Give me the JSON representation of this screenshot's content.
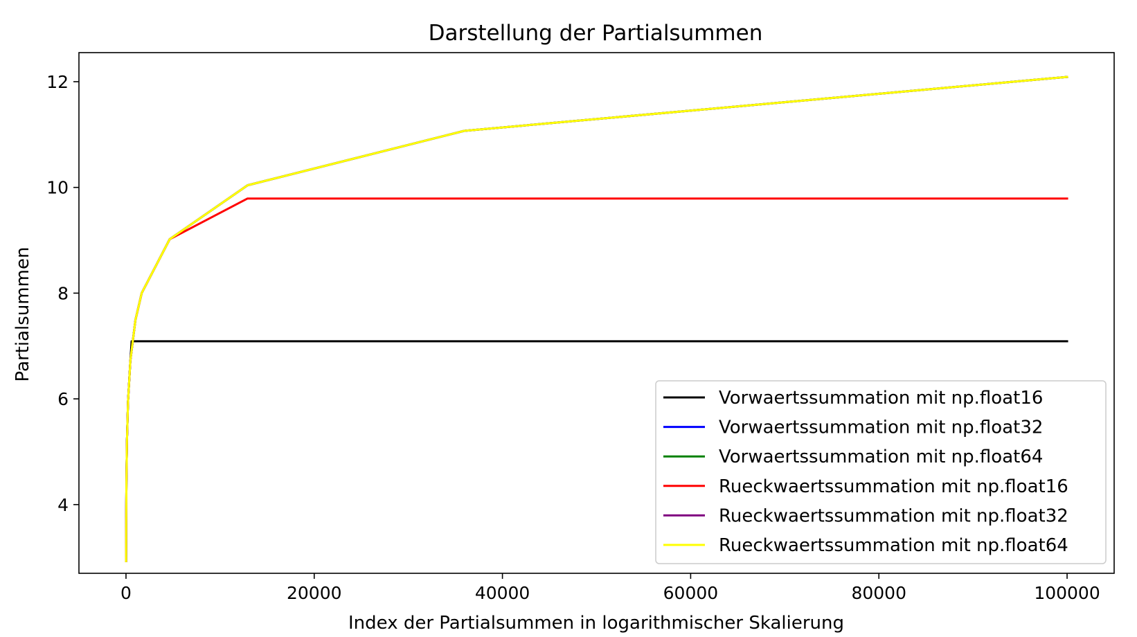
{
  "chart_data": {
    "type": "line",
    "title": "Darstellung der Partialsummen",
    "xlabel": "Index der Partialsummen in logarithmischer Skalierung",
    "ylabel": "Partialsummen",
    "xlim": [
      -5000,
      105000
    ],
    "ylim": [
      2.7,
      12.55
    ],
    "xticks": [
      0,
      20000,
      40000,
      60000,
      80000,
      100000
    ],
    "xtick_labels": [
      "0",
      "20000",
      "40000",
      "60000",
      "80000",
      "100000"
    ],
    "yticks": [
      4,
      6,
      8,
      10,
      12
    ],
    "ytick_labels": [
      "4",
      "6",
      "8",
      "10",
      "12"
    ],
    "grid": false,
    "legend_position": "lower-right",
    "series": [
      {
        "name": "Vorwaertssummation mit np.float16",
        "color": "#000000",
        "x": [
          10,
          22,
          46,
          100,
          215,
          464,
          600,
          1000,
          1668,
          4642,
          12915,
          35938,
          100000
        ],
        "y": [
          2.93,
          3.69,
          4.42,
          5.19,
          5.95,
          6.72,
          7.09,
          7.09,
          7.09,
          7.09,
          7.09,
          7.09,
          7.09
        ]
      },
      {
        "name": "Vorwaertssummation mit np.float32",
        "color": "#0000ff",
        "x": [
          10,
          22,
          46,
          100,
          215,
          464,
          1000,
          1668,
          4642,
          12915,
          35938,
          100000
        ],
        "y": [
          2.93,
          3.69,
          4.42,
          5.19,
          5.95,
          6.72,
          7.49,
          8.0,
          9.02,
          10.04,
          11.07,
          12.09
        ]
      },
      {
        "name": "Vorwaertssummation mit np.float64",
        "color": "#008000",
        "x": [
          10,
          22,
          46,
          100,
          215,
          464,
          1000,
          1668,
          4642,
          12915,
          35938,
          100000
        ],
        "y": [
          2.93,
          3.69,
          4.42,
          5.19,
          5.95,
          6.72,
          7.49,
          8.0,
          9.02,
          10.04,
          11.07,
          12.09
        ]
      },
      {
        "name": "Rueckwaertssummation mit np.float16",
        "color": "#ff0000",
        "x": [
          10,
          22,
          46,
          100,
          215,
          464,
          1000,
          1668,
          4642,
          12915,
          35938,
          100000
        ],
        "y": [
          2.93,
          3.69,
          4.42,
          5.19,
          5.95,
          6.72,
          7.49,
          8.0,
          9.02,
          9.79,
          9.79,
          9.79
        ]
      },
      {
        "name": "Rueckwaertssummation mit np.float32",
        "color": "#800080",
        "x": [
          10,
          22,
          46,
          100,
          215,
          464,
          1000,
          1668,
          4642,
          12915,
          35938,
          100000
        ],
        "y": [
          2.93,
          3.69,
          4.42,
          5.19,
          5.95,
          6.72,
          7.49,
          8.0,
          9.02,
          10.04,
          11.07,
          12.09
        ]
      },
      {
        "name": "Rueckwaertssummation mit np.float64",
        "color": "#ffff00",
        "x": [
          10,
          22,
          46,
          100,
          215,
          464,
          1000,
          1668,
          4642,
          12915,
          35938,
          100000
        ],
        "y": [
          2.93,
          3.69,
          4.42,
          5.19,
          5.95,
          6.72,
          7.49,
          8.0,
          9.02,
          10.04,
          11.07,
          12.09
        ]
      }
    ]
  }
}
